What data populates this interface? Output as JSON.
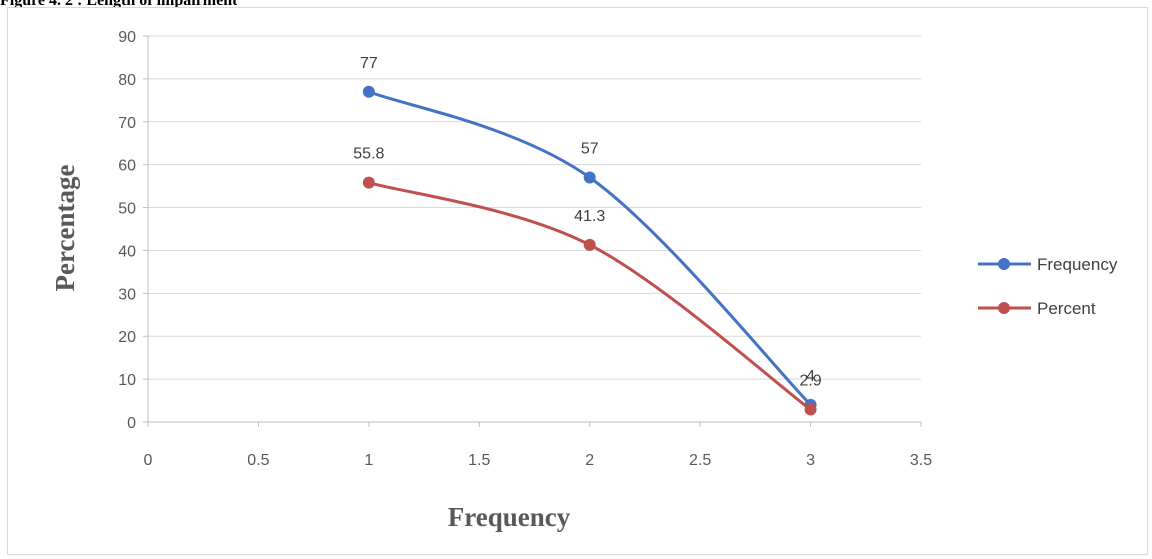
{
  "caption": "Figure 4. 2 : Length of impairment",
  "chart_data": {
    "type": "line",
    "title": "",
    "xlabel": "Frequency",
    "ylabel": "Percentage",
    "xlim": [
      0,
      3.5
    ],
    "ylim": [
      0,
      90
    ],
    "x_ticks": [
      0,
      0.5,
      1,
      1.5,
      2,
      2.5,
      3,
      3.5
    ],
    "y_ticks": [
      0,
      10,
      20,
      30,
      40,
      50,
      60,
      70,
      80,
      90
    ],
    "smooth": true,
    "grid": "horizontal",
    "legend_position": "right",
    "series": [
      {
        "name": "Frequency",
        "color": "#4472C4",
        "x": [
          1,
          2,
          3
        ],
        "y": [
          77,
          57,
          4
        ],
        "labels": [
          "77",
          "57",
          "4"
        ]
      },
      {
        "name": "Percent",
        "color": "#C0504D",
        "x": [
          1,
          2,
          3
        ],
        "y": [
          55.8,
          41.3,
          2.9
        ],
        "labels": [
          "55.8",
          "41.3",
          "2.9"
        ]
      }
    ]
  }
}
